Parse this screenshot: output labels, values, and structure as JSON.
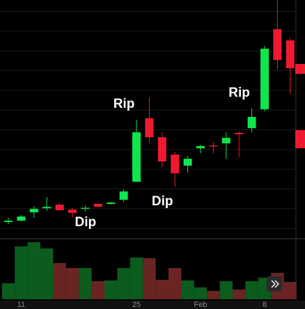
{
  "chart_data": {
    "type": "candlestick",
    "categories": [
      null,
      "11",
      null,
      null,
      null,
      null,
      null,
      null,
      null,
      null,
      "25",
      null,
      null,
      null,
      null,
      "Feb",
      null,
      null,
      null,
      null,
      "8",
      null,
      null
    ],
    "open": [
      0.32,
      0.39,
      0.81,
      1.02,
      1.2,
      0.95,
      1.0,
      1.24,
      1.24,
      1.45,
      2.36,
      5.58,
      4.62,
      3.74,
      3.18,
      4.06,
      4.2,
      4.31,
      4.84,
      5.08,
      6.04,
      10.1,
      9.53
    ],
    "high": [
      0.53,
      0.67,
      1.13,
      1.59,
      1.27,
      1.02,
      1.16,
      1.27,
      1.34,
      1.98,
      5.51,
      6.64,
      4.87,
      3.88,
      3.67,
      4.24,
      4.38,
      4.87,
      4.91,
      6.07,
      9.25,
      11.58,
      9.64
    ],
    "low": [
      0.21,
      0.35,
      0.53,
      0.88,
      0.88,
      0.53,
      0.85,
      1.06,
      1.2,
      1.34,
      2.36,
      4.34,
      3.11,
      2.12,
      2.82,
      3.81,
      3.81,
      3.53,
      3.6,
      4.87,
      5.93,
      8.05,
      6.81
    ],
    "close": [
      0.39,
      0.6,
      0.99,
      1.09,
      0.92,
      0.78,
      1.04,
      1.09,
      1.31,
      1.87,
      4.87,
      4.62,
      3.39,
      2.79,
      3.53,
      4.17,
      4.17,
      4.59,
      4.77,
      5.65,
      9.11,
      8.54,
      8.12
    ],
    "volume": [
      23,
      76,
      82,
      73,
      52,
      45,
      45,
      26,
      27,
      45,
      60,
      59,
      28,
      45,
      27,
      17,
      12,
      26,
      14,
      26,
      31,
      38,
      25
    ],
    "up_color": "#0ee64c",
    "down_color": "#f01a30",
    "volume_up_color": "#0b5c1d",
    "volume_down_color": "#6a2424",
    "ylim": [
      -0.42,
      11.58
    ],
    "yticks": [
      0,
      1,
      2,
      3,
      4,
      5,
      6,
      7,
      8,
      9,
      10,
      11
    ],
    "volume_lim": [
      0,
      86
    ],
    "grid": true,
    "annotations": [
      {
        "text": "Rip",
        "index": 10
      },
      {
        "text": "Dip",
        "index": 7
      },
      {
        "text": "Dip",
        "index": 13
      },
      {
        "text": "Rip",
        "index": 19
      }
    ]
  }
}
